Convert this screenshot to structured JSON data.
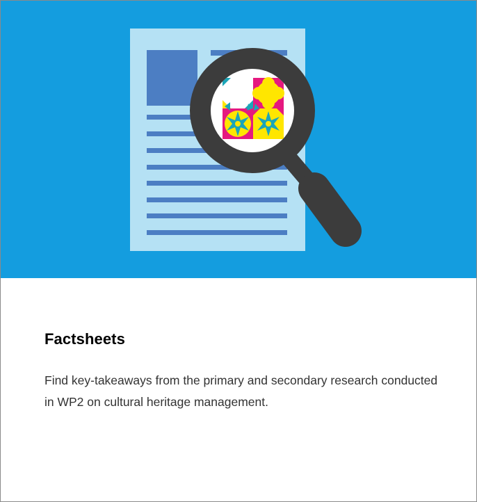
{
  "card": {
    "title": "Factsheets",
    "description": "Find key-takeaways from the primary and secondary research conducted in WP2 on cultural heritage management."
  },
  "illustration": {
    "icons": [
      "document-icon",
      "magnifying-glass-icon",
      "tile-pattern-icon"
    ]
  },
  "colors": {
    "hero_background": "#149ddf",
    "document_paper": "#b5e1f4",
    "document_lines": "#4c7ec3",
    "magnifier": "#3c3c3c",
    "tile_magenta": "#e5197f",
    "tile_yellow": "#ffe600",
    "tile_teal": "#1ba5b8"
  }
}
